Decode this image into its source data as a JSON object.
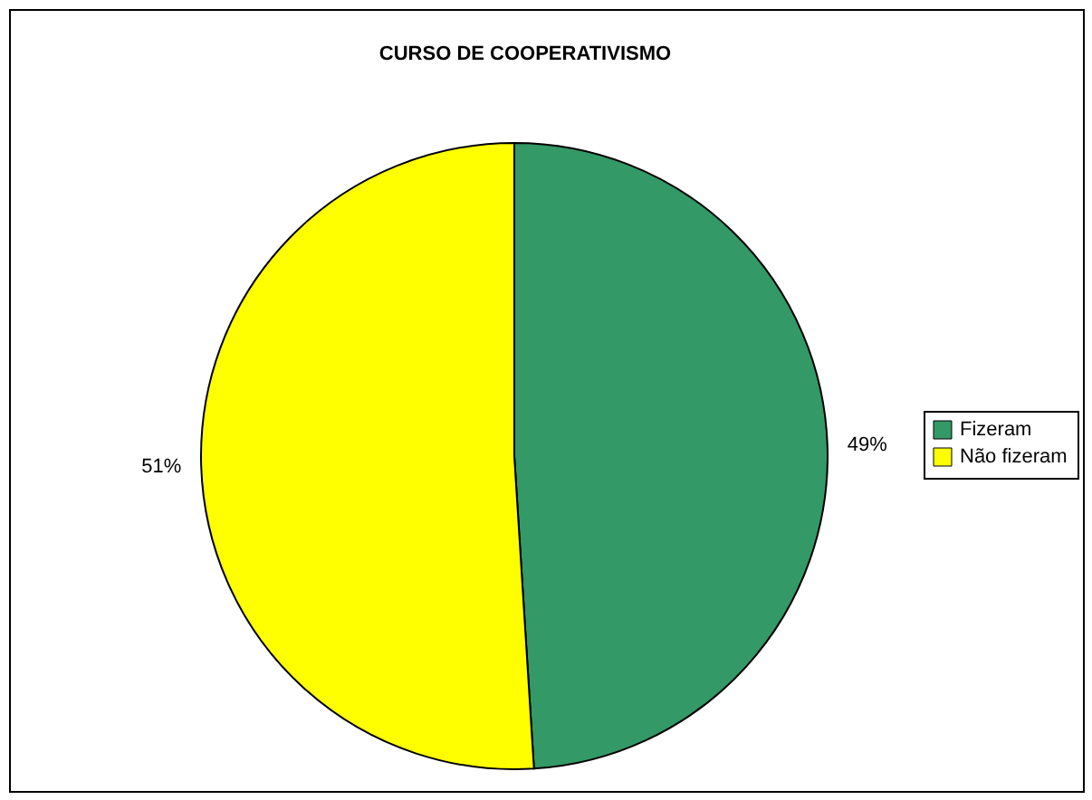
{
  "chart_data": {
    "type": "pie",
    "title": "CURSO DE COOPERATIVISMO",
    "categories": [
      "Fizeram",
      "Não fizeram"
    ],
    "values": [
      49,
      51
    ],
    "colors": [
      "#339966",
      "#ffff00"
    ],
    "value_labels": [
      "49%",
      "51%"
    ],
    "legend": "right"
  }
}
